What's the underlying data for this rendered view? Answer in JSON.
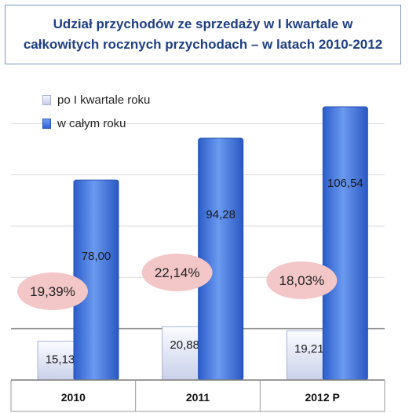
{
  "title": {
    "line1": "Udział przychodów  ze sprzedaży  w I kwartale  w",
    "line2": "całkowitych  rocznych  przychodach  – w latach  2010-2012"
  },
  "legend": {
    "series1": "po I kwartale roku",
    "series2": "w całym roku"
  },
  "colors": {
    "series1": "#dde3f3",
    "series2": "#3a6fe0",
    "ellipse": "#f3c6c8",
    "title_text": "#1f3f86"
  },
  "chart_data": {
    "type": "bar",
    "categories": [
      "2010",
      "2011",
      "2012 P"
    ],
    "series": [
      {
        "name": "po I kwartale roku",
        "values": [
          15.13,
          20.88,
          19.21
        ],
        "labels": [
          "15,13",
          "20,88",
          "19,21"
        ]
      },
      {
        "name": "w całym roku",
        "values": [
          78.0,
          94.28,
          106.54
        ],
        "labels": [
          "78,00",
          "94,28",
          "106,54"
        ]
      }
    ],
    "annotations": [
      "19,39%",
      "22,14%",
      "18,03%"
    ],
    "ylim": [
      0,
      120
    ],
    "grid": true,
    "legend_position": "top-left"
  }
}
